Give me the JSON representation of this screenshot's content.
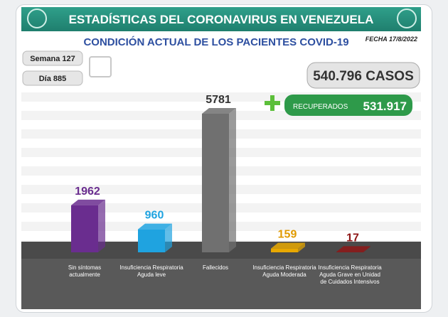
{
  "chart_data": {
    "type": "bar3d",
    "title": "ESTADÍSTICAS DEL CORONAVIRUS EN VENEZUELA",
    "subtitle": "CONDICIÓN ACTUAL DE LOS PACIENTES COVID-19",
    "date": "FECHA 17/8/2022",
    "week": "Semana 127",
    "day": "Día 885",
    "cases": "540.796 CASOS",
    "recovered_label": "RECUPERADOS",
    "recovered": "531.917",
    "categories": [
      "Sin síntomas actualmente",
      "Insuficiencia Respiratoria Aguda leve",
      "Fallecidos",
      "Insuficiencia Respiratoria Aguda Moderada",
      "Insuficiencia Respiratoria Aguda Grave en Unidad de Cuidados Intensivos"
    ],
    "values": [
      1962,
      960,
      5781,
      159,
      17
    ],
    "colors": [
      "#6a2d8f",
      "#1fa3e0",
      "#707070",
      "#e8a800",
      "#8e1616"
    ],
    "label_colors": [
      "#6a2d8f",
      "#1fa3e0",
      "#333333",
      "#e09a00",
      "#8e1616"
    ]
  }
}
